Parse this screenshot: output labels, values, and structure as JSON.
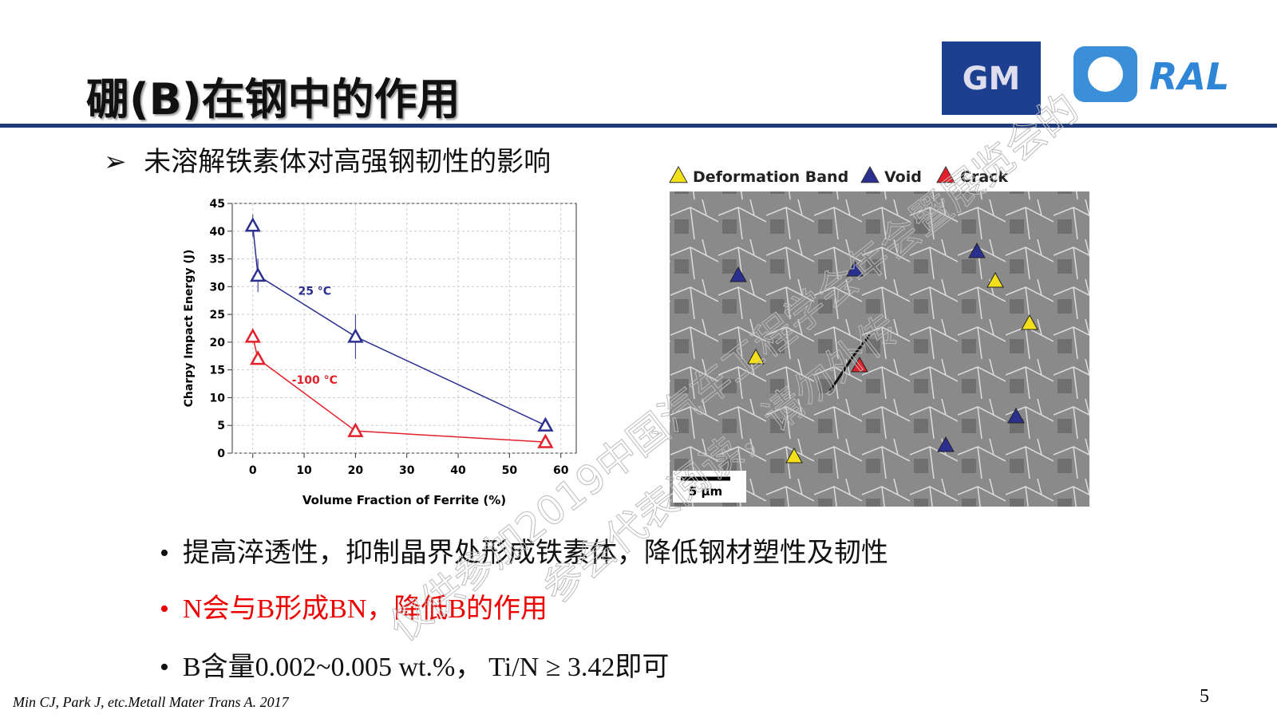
{
  "title": "硼(B)在钢中的作用",
  "logos": [
    "GM",
    "RAL"
  ],
  "subtitle": "未溶解铁素体对高强钢韧性的影响",
  "chart_data": {
    "type": "line",
    "xlabel": "Volume Fraction of Ferrite (%)",
    "ylabel": "Charpy Impact Energy (J)",
    "xlim": [
      -4,
      63
    ],
    "ylim": [
      0,
      45
    ],
    "xticks": [
      0,
      10,
      20,
      30,
      40,
      50,
      60
    ],
    "yticks": [
      0,
      5,
      10,
      15,
      20,
      25,
      30,
      35,
      40,
      45
    ],
    "series": [
      {
        "name": "25 °C",
        "color": "#2b2f8f",
        "x": [
          0,
          1,
          20,
          57
        ],
        "values": [
          41,
          32,
          21,
          5
        ],
        "errors": [
          2,
          3,
          4,
          0.5
        ]
      },
      {
        "name": "-100 °C",
        "color": "#e3202a",
        "x": [
          0,
          1,
          20,
          57
        ],
        "values": [
          21,
          17,
          4,
          2
        ],
        "errors": [
          0.5,
          0.5,
          0.5,
          0.5
        ]
      }
    ]
  },
  "micrograph": {
    "legend": [
      "Deformation Band",
      "Void",
      "Crack"
    ],
    "scale_bar": "5 µm"
  },
  "bullets": [
    "提高淬透性，抑制晶界处形成铁素体，降低钢材塑性及韧性",
    "N会与B形成BN，降低B的作用",
    "B含量0.002~0.005 wt.%， Ti/N ≥ 3.42即可"
  ],
  "citation": "Min CJ, Park J, etc.Metall Mater Trans A. 2017",
  "page_number": "5",
  "watermark": [
    "仅供参加2019中国汽车工程学会年会暨展览会的",
    "参会代表阅读，请勿外传"
  ]
}
